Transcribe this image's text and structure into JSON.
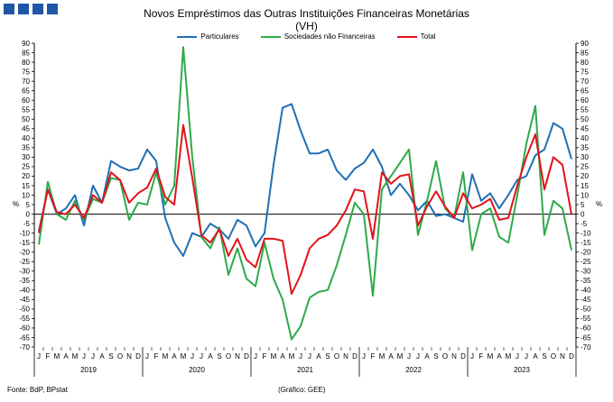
{
  "header": {
    "title": "Novos Empréstimos das Outras Instituições Financeiras Monetárias",
    "subtitle": "(VH)"
  },
  "footer": {
    "source": "Fonte: BdP, BPstat",
    "credit": "(Gráfico: GEE)"
  },
  "chart_data": {
    "type": "line",
    "title": "Novos Empréstimos das Outras Instituições Financeiras Monetárias",
    "subtitle": "(VH)",
    "ylabel_left": "%",
    "ylabel_right": "%",
    "ylim": [
      -70,
      90
    ],
    "ytick_step": 5,
    "grid": false,
    "legend_position": "top-center",
    "month_labels": [
      "J",
      "F",
      "M",
      "A",
      "M",
      "J",
      "J",
      "A",
      "S",
      "O",
      "N",
      "D"
    ],
    "years": [
      "2019",
      "2020",
      "2021",
      "2022",
      "2023"
    ],
    "series": [
      {
        "name": "Particulares",
        "color": "#1f6fb5",
        "values": [
          -9,
          13,
          0,
          3,
          10,
          -6,
          15,
          6,
          28,
          25,
          23,
          24,
          34,
          28,
          -2,
          -15,
          -22,
          -10,
          -12,
          -5,
          -8,
          -13,
          -3,
          -6,
          -17,
          -10,
          26,
          56,
          58,
          44,
          32,
          32,
          34,
          23,
          18,
          24,
          27,
          34,
          25,
          10,
          16,
          10,
          2,
          7,
          -1,
          0,
          -2,
          -4,
          21,
          7,
          11,
          3,
          10,
          18,
          20,
          31,
          34,
          48,
          45,
          29
        ]
      },
      {
        "name": "Sociedades não Financeiras",
        "color": "#2eaa4a",
        "values": [
          -16,
          17,
          0,
          -3,
          7,
          -3,
          8,
          6,
          19,
          18,
          -3,
          6,
          5,
          22,
          5,
          15,
          88,
          30,
          -12,
          -18,
          -7,
          -32,
          -18,
          -34,
          -38,
          -15,
          -34,
          -45,
          -66,
          -59,
          -44,
          -41,
          -40,
          -27,
          -11,
          6,
          0,
          -43,
          13,
          20,
          27,
          34,
          -11,
          7,
          28,
          3,
          -2,
          22,
          -19,
          0,
          3,
          -12,
          -15,
          10,
          37,
          57,
          -11,
          7,
          3,
          -19
        ]
      },
      {
        "name": "Total",
        "color": "#e3121b",
        "values": [
          -10,
          13,
          1,
          0,
          5,
          -2,
          10,
          6,
          22,
          18,
          6,
          11,
          14,
          24,
          9,
          5,
          47,
          19,
          -11,
          -15,
          -8,
          -22,
          -13,
          -24,
          -28,
          -13,
          -13,
          -14,
          -42,
          -32,
          -18,
          -13,
          -11,
          -6,
          2,
          13,
          12,
          -13,
          22,
          16,
          20,
          21,
          -6,
          4,
          12,
          4,
          -2,
          11,
          3,
          5,
          8,
          -3,
          -2,
          15,
          30,
          42,
          13,
          30,
          26,
          0
        ]
      }
    ]
  }
}
